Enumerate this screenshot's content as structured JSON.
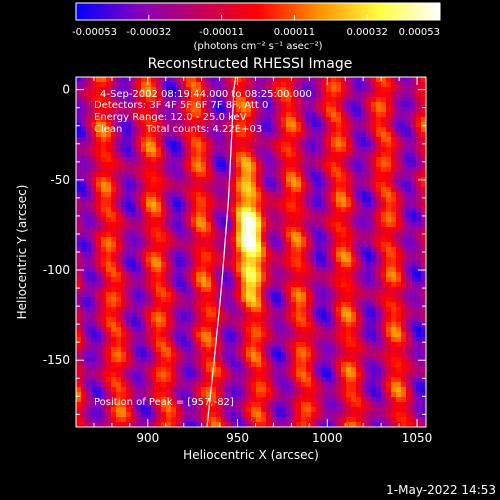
{
  "colorbar": {
    "colors": [
      "#0000ff",
      "#8000c0",
      "#c00060",
      "#ff0000",
      "#ff9000",
      "#ffff40",
      "#ffffff"
    ],
    "tick_labels": [
      "-0.00053",
      "-0.00032",
      "-0.00011",
      "0.00011",
      "0.00032",
      "0.00053"
    ],
    "unit_label": "(photons cm⁻² s⁻¹ asec⁻²)"
  },
  "title": "Reconstructed RHESSI Image",
  "info": {
    "time_range": "4-Sep-2002 08:19:44.000 to 08:25:00.000",
    "detectors": "Detectors: 3F 4F 5F 6F 7F 8F, Att 0",
    "energy_range": "Energy Range: 12.0 - 25.0 keV",
    "algorithm": "Clean",
    "total_counts": "Total counts: 4.22E+03",
    "peak": "Position of Peak = [957,-82]"
  },
  "chart_data": {
    "type": "heatmap",
    "xlabel": "Heliocentric X (arcsec)",
    "ylabel": "Heliocentric Y (arcsec)",
    "xlim": [
      860,
      1055
    ],
    "ylim": [
      -187,
      7
    ],
    "x_ticks": [
      900,
      950,
      1000,
      1050
    ],
    "y_ticks": [
      0,
      -50,
      -100,
      -150
    ],
    "peak": [
      957,
      -82
    ],
    "limb_curve": [
      [
        933,
        -187
      ],
      [
        937,
        -150
      ],
      [
        941,
        -110
      ],
      [
        945,
        -60
      ],
      [
        948,
        0
      ],
      [
        949,
        7
      ]
    ]
  },
  "timestamp": "1-May-2022 14:53"
}
